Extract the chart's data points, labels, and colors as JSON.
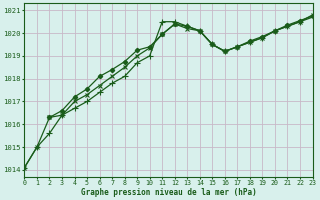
{
  "title": "Graphe pression niveau de la mer (hPa)",
  "bg_color": "#d8f0ec",
  "plot_bg_color": "#d8f0ec",
  "line_color": "#1a5c1a",
  "grid_color": "#c8b8c8",
  "xlim": [
    0,
    23
  ],
  "ylim": [
    1013.7,
    1021.3
  ],
  "yticks": [
    1014,
    1015,
    1016,
    1017,
    1018,
    1019,
    1020,
    1021
  ],
  "xticks": [
    0,
    1,
    2,
    3,
    4,
    5,
    6,
    7,
    8,
    9,
    10,
    11,
    12,
    13,
    14,
    15,
    16,
    17,
    18,
    19,
    20,
    21,
    22,
    23
  ],
  "series1_x": [
    0,
    1,
    2,
    3,
    4,
    5,
    6,
    7,
    8,
    9,
    10,
    11,
    12,
    13,
    14,
    15,
    16,
    17,
    18,
    19,
    20,
    21,
    22,
    23
  ],
  "series1_y": [
    1014.1,
    1015.0,
    1015.6,
    1016.4,
    1016.7,
    1017.0,
    1017.4,
    1017.8,
    1018.1,
    1018.7,
    1019.0,
    1020.5,
    1020.5,
    1020.3,
    1020.1,
    1019.5,
    1019.2,
    1019.4,
    1019.6,
    1019.8,
    1020.1,
    1020.3,
    1020.5,
    1020.7
  ],
  "series2_x": [
    0,
    1,
    2,
    3,
    4,
    5,
    6,
    7,
    8,
    9,
    10,
    11,
    12,
    13,
    14,
    15,
    16,
    17,
    18,
    19,
    20,
    21,
    22,
    23
  ],
  "series2_y": [
    1014.1,
    1015.0,
    1016.3,
    1016.4,
    1017.0,
    1017.3,
    1017.7,
    1018.1,
    1018.5,
    1019.0,
    1019.35,
    1019.95,
    1020.4,
    1020.2,
    1020.1,
    1019.5,
    1019.2,
    1019.4,
    1019.6,
    1019.8,
    1020.1,
    1020.3,
    1020.5,
    1020.8
  ],
  "series3_x": [
    2,
    3,
    4,
    5,
    6,
    7,
    8,
    9,
    10,
    11,
    12,
    13,
    14,
    15,
    16,
    17,
    18,
    19,
    20,
    21,
    22,
    23
  ],
  "series3_y": [
    1016.3,
    1016.6,
    1017.2,
    1017.55,
    1018.1,
    1018.4,
    1018.75,
    1019.25,
    1019.4,
    1019.95,
    1020.4,
    1020.3,
    1020.1,
    1019.5,
    1019.2,
    1019.4,
    1019.65,
    1019.85,
    1020.1,
    1020.35,
    1020.55,
    1020.75
  ],
  "ylabel_fontsize": 5.2,
  "xlabel_fontsize": 5.5,
  "tick_fontsize": 4.8
}
